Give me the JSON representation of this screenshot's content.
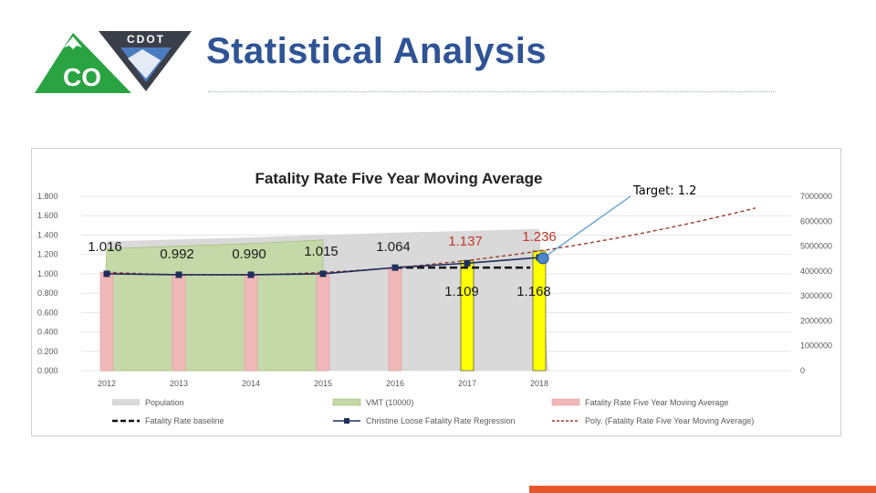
{
  "header": {
    "title": "Statistical Analysis",
    "logo_left_text": "CO",
    "logo_right_text": "CDOT"
  },
  "annotation": {
    "target": "Target: 1.2"
  },
  "colors": {
    "title": "#2f5496",
    "population": "#d9d9d9",
    "vmt": "#c5d9a8",
    "fatality_bar": "#f0b8b8",
    "highlight_bar": "#ffff00",
    "trend": "#9c3a2a",
    "regression": "#1f2e5e",
    "target_line": "#5b9bd5",
    "logo_green": "#2aa342",
    "accent_bar": "#e8572a"
  },
  "chart_data": {
    "type": "bar",
    "title": "Fatality Rate Five Year Moving Average",
    "categories": [
      "2012",
      "2013",
      "2014",
      "2015",
      "2016",
      "2017",
      "2018"
    ],
    "left_axis": {
      "ticks": [
        "0.000",
        "0.200",
        "0.400",
        "0.600",
        "0.800",
        "1.000",
        "1.200",
        "1.400",
        "1.600",
        "1.800"
      ],
      "range": [
        0,
        1.8
      ]
    },
    "right_axis": {
      "ticks": [
        "0",
        "1000000",
        "2000000",
        "3000000",
        "4000000",
        "5000000",
        "6000000",
        "7000000"
      ],
      "range": [
        0,
        7000000
      ]
    },
    "series": [
      {
        "name": "Population",
        "kind": "area",
        "axis": "right",
        "values": [
          5190000,
          5270000,
          5350000,
          5450000,
          5540000,
          5610000,
          5690000
        ]
      },
      {
        "name": "VMT (10000)",
        "kind": "area",
        "axis": "right",
        "values": [
          4900000,
          5000000,
          5100000,
          5250000,
          null,
          null,
          null
        ]
      },
      {
        "name": "Fatality Rate Five Year Moving Average",
        "kind": "bar",
        "axis": "left",
        "values": [
          1.016,
          0.992,
          0.99,
          1.015,
          1.064,
          1.137,
          1.236
        ],
        "highlight": [
          false,
          false,
          false,
          false,
          false,
          true,
          true
        ]
      },
      {
        "name": "Fatality Rate baseline",
        "kind": "dashed-line",
        "axis": "left",
        "x_range": [
          "2016",
          "2018"
        ],
        "value": 1.064
      },
      {
        "name": "Christine Loose Fatality Rate Regression",
        "kind": "line",
        "axis": "left",
        "values": [
          1.0,
          0.99,
          0.99,
          1.0,
          1.064,
          1.109,
          1.168
        ]
      },
      {
        "name": "Poly. (Fatality Rate Five Year Moving Average)",
        "kind": "trendline",
        "axis": "left",
        "x_extent": [
          2012,
          2021
        ]
      }
    ],
    "data_labels_top": [
      "1.016",
      "0.992",
      "0.990",
      "1.015",
      "1.064",
      "1.137",
      "1.236"
    ],
    "data_labels_bottom": [
      "1.109",
      "1.168"
    ],
    "legend": [
      "Population",
      "VMT (10000)",
      "Fatality Rate Five Year Moving Average",
      "Fatality Rate baseline",
      "Christine Loose Fatality Rate Regression",
      "Poly. (Fatality Rate Five Year Moving Average)"
    ],
    "legend_position": "bottom",
    "target_value": 1.2
  }
}
